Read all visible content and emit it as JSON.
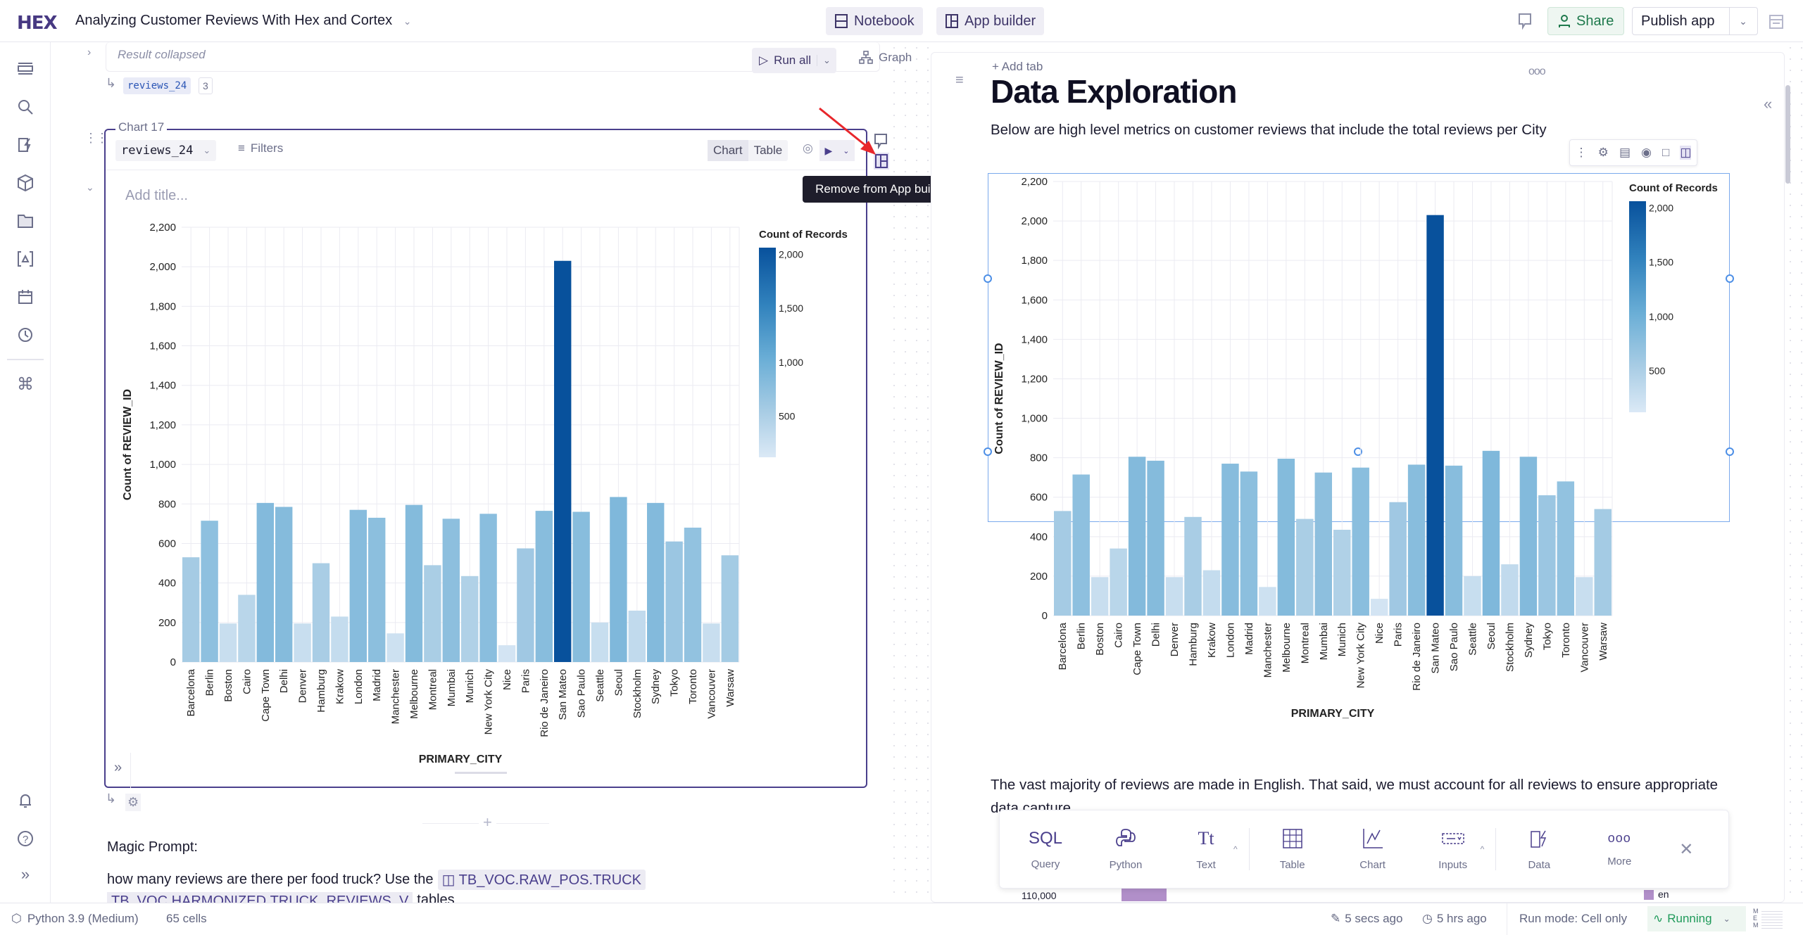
{
  "header": {
    "logo": "HEX",
    "title": "Analyzing Customer Reviews With Hex and Cortex",
    "notebook_label": "Notebook",
    "app_builder_label": "App builder",
    "share_label": "Share",
    "publish_label": "Publish app"
  },
  "sidebar": {
    "icons": [
      "outline-icon",
      "search-icon",
      "data-connections-icon",
      "components-icon",
      "files-icon",
      "variables-icon",
      "schedule-icon",
      "history-icon",
      "command-icon",
      "bell-icon",
      "help-icon",
      "expand-icon"
    ]
  },
  "notebook": {
    "result_collapsed": "Result collapsed",
    "run_all_label": "Run all",
    "graph_label": "Graph",
    "output_var": "reviews_24",
    "output_count": "3",
    "chart_cell": {
      "label": "Chart 17",
      "dataframe": "reviews_24",
      "filters_label": "Filters",
      "view_chart": "Chart",
      "view_table": "Table",
      "title_placeholder": "Add title..."
    },
    "tooltip": "Remove from App builder",
    "magic_prompt_label": "Magic Prompt:",
    "prompt_text": "how many reviews are there per food truck? Use the",
    "prompt_table_1": "TB_VOC.RAW_POS.TRUCK",
    "prompt_table_2": "TB_VOC.HARMONIZED.TRUCK_REVIEWS_V",
    "prompt_suffix": "tables"
  },
  "app": {
    "add_tab": "Add tab",
    "title": "Data Exploration",
    "intro": "Below are high level metrics on customer reviews that include the total reviews per City",
    "para2": "The vast majority of reviews are made in English. That said, we must account for all reviews to ensure appropriate data capture.",
    "next_chart_tick": "110,000",
    "next_chart_legend": "en",
    "next_chart_color": "#b18fc9"
  },
  "add_cell_toolbar": {
    "items": [
      {
        "glyph": "SQL",
        "label": "Query"
      },
      {
        "glyph": "",
        "label": "Python"
      },
      {
        "glyph": "Tt",
        "label": "Text"
      },
      {
        "glyph": "",
        "label": "Table"
      },
      {
        "glyph": "",
        "label": "Chart"
      },
      {
        "glyph": "",
        "label": "Inputs"
      },
      {
        "glyph": "",
        "label": "Data"
      },
      {
        "glyph": "ooo",
        "label": "More"
      }
    ]
  },
  "status_bar": {
    "kernel": "Python 3.9 (Medium)",
    "cells": "65 cells",
    "edited": "5 secs ago",
    "history": "5 hrs ago",
    "run_mode": "Run mode: Cell only",
    "running": "Running",
    "mem": "MEM"
  },
  "colors": {
    "accent": "#4a3f8c",
    "share_green": "#1f7a4d",
    "bar_dark": "#08519c",
    "bar_light": "#dbe9f6",
    "arrow": "#e8262b"
  },
  "chart_data": [
    {
      "type": "bar",
      "xlabel": "PRIMARY_CITY",
      "ylabel": "Count of REVIEW_ID",
      "ylim": [
        0,
        2200
      ],
      "yticks": [
        "0",
        "200",
        "400",
        "600",
        "800",
        "1,000",
        "1,200",
        "1,400",
        "1,600",
        "1,800",
        "2,000",
        "2,200"
      ],
      "grid": true,
      "legend": {
        "title": "Count of Records",
        "ticks": [
          "500",
          "1,000",
          "1,500",
          "2,000"
        ],
        "placement": "right"
      },
      "categories": [
        "Barcelona",
        "Berlin",
        "Boston",
        "Cairo",
        "Cape Town",
        "Delhi",
        "Denver",
        "Hamburg",
        "Krakow",
        "London",
        "Madrid",
        "Manchester",
        "Melbourne",
        "Montreal",
        "Mumbai",
        "Munich",
        "New York City",
        "Nice",
        "Paris",
        "Rio de Janeiro",
        "San Mateo",
        "Sao Paulo",
        "Seattle",
        "Seoul",
        "Stockholm",
        "Sydney",
        "Tokyo",
        "Toronto",
        "Vancouver",
        "Warsaw"
      ],
      "values": [
        530,
        715,
        195,
        340,
        805,
        785,
        195,
        500,
        230,
        770,
        730,
        145,
        795,
        490,
        725,
        435,
        750,
        85,
        575,
        765,
        2030,
        760,
        200,
        835,
        260,
        805,
        610,
        680,
        195,
        540
      ]
    },
    {
      "type": "bar",
      "xlabel": "PRIMARY_CITY",
      "ylabel": "Count of REVIEW_ID",
      "ylim": [
        0,
        2200
      ],
      "yticks": [
        "0",
        "200",
        "400",
        "600",
        "800",
        "1,000",
        "1,200",
        "1,400",
        "1,600",
        "1,800",
        "2,000",
        "2,200"
      ],
      "grid": true,
      "legend": {
        "title": "Count of Records",
        "ticks": [
          "500",
          "1,000",
          "1,500",
          "2,000"
        ],
        "placement": "right"
      },
      "categories": [
        "Barcelona",
        "Berlin",
        "Boston",
        "Cairo",
        "Cape Town",
        "Delhi",
        "Denver",
        "Hamburg",
        "Krakow",
        "London",
        "Madrid",
        "Manchester",
        "Melbourne",
        "Montreal",
        "Mumbai",
        "Munich",
        "New York City",
        "Nice",
        "Paris",
        "Rio de Janeiro",
        "San Mateo",
        "Sao Paulo",
        "Seattle",
        "Seoul",
        "Stockholm",
        "Sydney",
        "Tokyo",
        "Toronto",
        "Vancouver",
        "Warsaw"
      ],
      "values": [
        530,
        715,
        195,
        340,
        805,
        785,
        195,
        500,
        230,
        770,
        730,
        145,
        795,
        490,
        725,
        435,
        750,
        85,
        575,
        765,
        2030,
        760,
        200,
        835,
        260,
        805,
        610,
        680,
        195,
        540
      ]
    }
  ]
}
